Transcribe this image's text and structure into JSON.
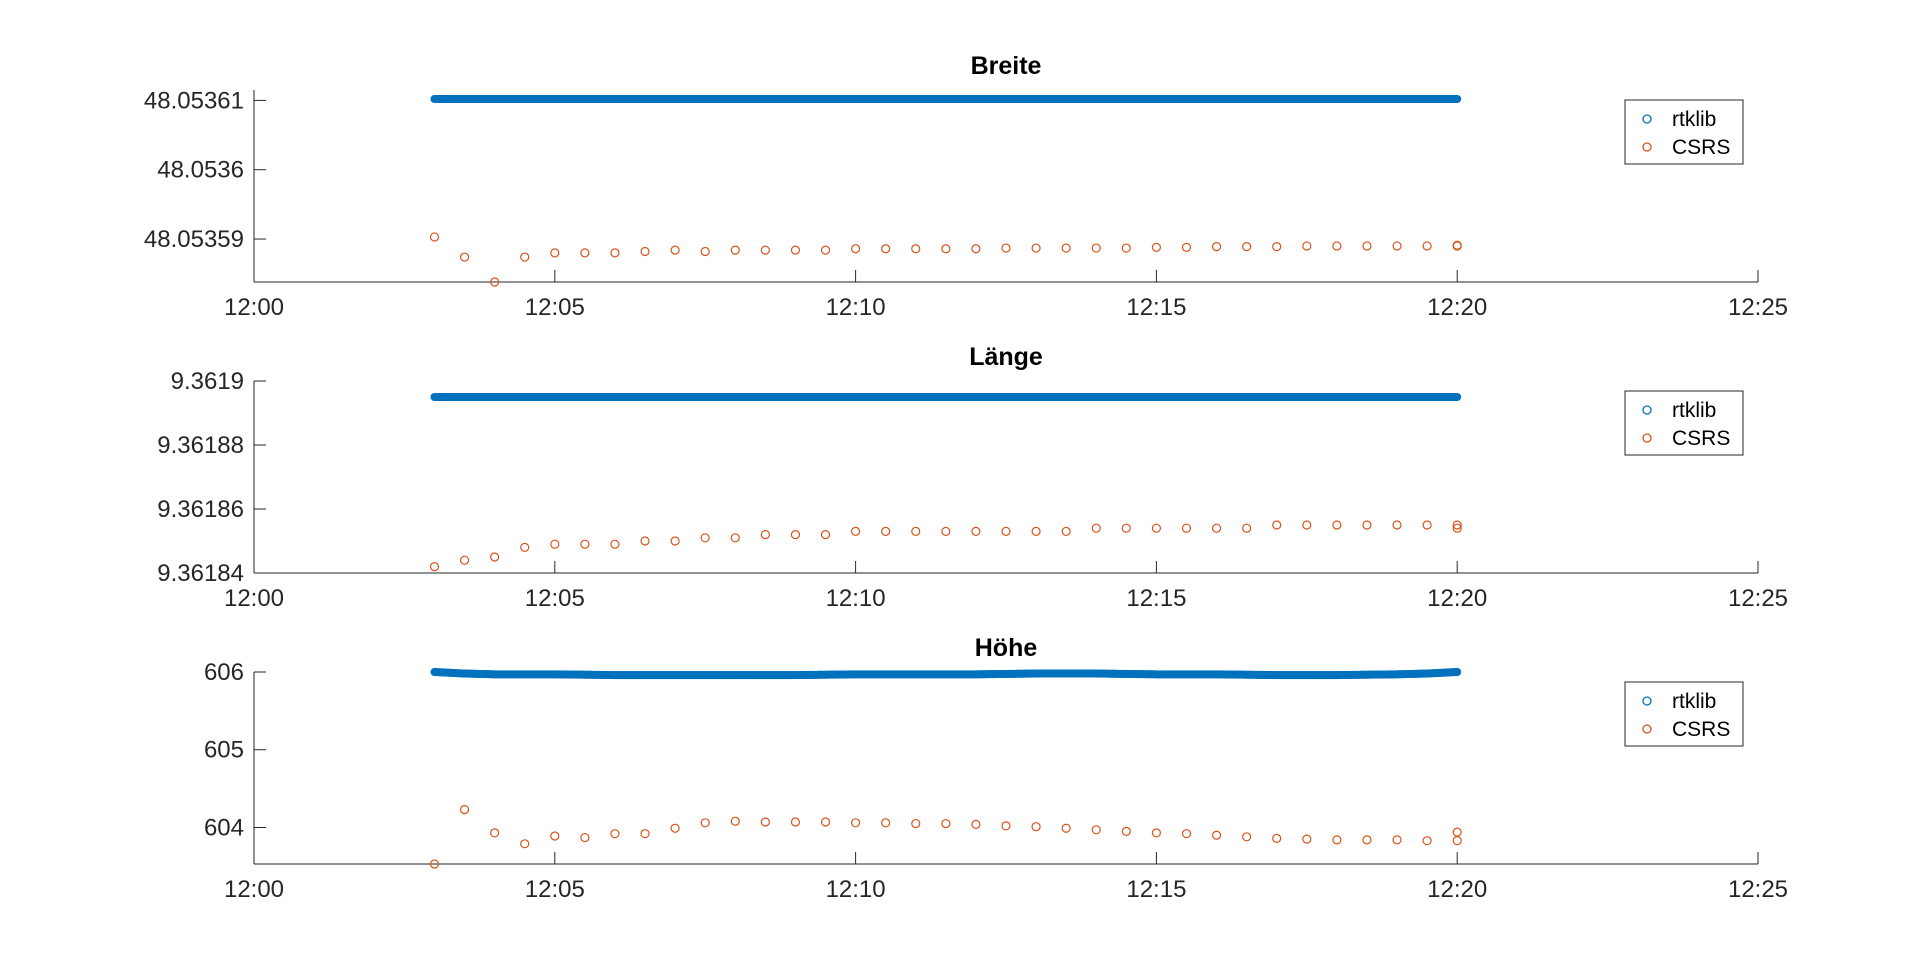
{
  "colors": {
    "rtklib": "#0072BD",
    "csrs": "#D95319"
  },
  "chart_data": [
    {
      "type": "scatter",
      "title": "Breite",
      "xlim": [
        "12:00",
        "12:25"
      ],
      "x_ticks": [
        "12:00",
        "12:05",
        "12:10",
        "12:15",
        "12:20",
        "12:25"
      ],
      "ylim": [
        48.0535838,
        48.0536115
      ],
      "y_ticks": [
        48.05359,
        48.0536,
        48.05361
      ],
      "y_tick_labels": [
        "48.05359",
        "48.0536",
        "48.05361"
      ],
      "legend": [
        "rtklib",
        "CSRS"
      ],
      "legend_position": "top-right",
      "series": [
        {
          "name": "rtklib",
          "x": [
            "12:03",
            "12:20"
          ],
          "values": [
            48.0536102,
            48.0536102
          ],
          "render": "dense"
        },
        {
          "name": "CSRS",
          "x": [
            "12:03",
            "12:03:30",
            "12:04",
            "12:04:30",
            "12:05",
            "12:05:30",
            "12:06",
            "12:06:30",
            "12:07",
            "12:07:30",
            "12:08",
            "12:08:30",
            "12:09",
            "12:09:30",
            "12:10",
            "12:10:30",
            "12:11",
            "12:11:30",
            "12:12",
            "12:12:30",
            "12:13",
            "12:13:30",
            "12:14",
            "12:14:30",
            "12:15",
            "12:15:30",
            "12:16",
            "12:16:30",
            "12:17",
            "12:17:30",
            "12:18",
            "12:18:30",
            "12:19",
            "12:19:30",
            "12:20",
            "12:20"
          ],
          "values": [
            48.0535903,
            48.0535874,
            48.0535838,
            48.0535874,
            48.053588,
            48.053588,
            48.053588,
            48.0535882,
            48.0535884,
            48.0535882,
            48.0535884,
            48.0535884,
            48.0535884,
            48.0535884,
            48.0535886,
            48.0535886,
            48.0535886,
            48.0535886,
            48.0535886,
            48.0535887,
            48.0535887,
            48.0535887,
            48.0535887,
            48.0535887,
            48.0535888,
            48.0535888,
            48.0535889,
            48.0535889,
            48.0535889,
            48.053589,
            48.053589,
            48.053589,
            48.053589,
            48.053589,
            48.053589,
            48.0535891
          ]
        }
      ]
    },
    {
      "type": "scatter",
      "title": "Länge",
      "xlim": [
        "12:00",
        "12:25"
      ],
      "x_ticks": [
        "12:00",
        "12:05",
        "12:10",
        "12:15",
        "12:20",
        "12:25"
      ],
      "ylim": [
        9.36184,
        9.3619
      ],
      "y_ticks": [
        9.36184,
        9.36186,
        9.36188,
        9.3619
      ],
      "y_tick_labels": [
        "9.36184",
        "9.36186",
        "9.36188",
        "9.3619"
      ],
      "legend": [
        "rtklib",
        "CSRS"
      ],
      "legend_position": "top-right",
      "series": [
        {
          "name": "rtklib",
          "x": [
            "12:03",
            "12:20"
          ],
          "values": [
            9.361895,
            9.361895
          ],
          "render": "dense"
        },
        {
          "name": "CSRS",
          "x": [
            "12:03",
            "12:03:30",
            "12:04",
            "12:04:30",
            "12:05",
            "12:05:30",
            "12:06",
            "12:06:30",
            "12:07",
            "12:07:30",
            "12:08",
            "12:08:30",
            "12:09",
            "12:09:30",
            "12:10",
            "12:10:30",
            "12:11",
            "12:11:30",
            "12:12",
            "12:12:30",
            "12:13",
            "12:13:30",
            "12:14",
            "12:14:30",
            "12:15",
            "12:15:30",
            "12:16",
            "12:16:30",
            "12:17",
            "12:17:30",
            "12:18",
            "12:18:30",
            "12:19",
            "12:19:30",
            "12:20",
            "12:20"
          ],
          "values": [
            9.361842,
            9.361844,
            9.361845,
            9.361848,
            9.361849,
            9.361849,
            9.361849,
            9.36185,
            9.36185,
            9.361851,
            9.361851,
            9.361852,
            9.361852,
            9.361852,
            9.361853,
            9.361853,
            9.361853,
            9.361853,
            9.361853,
            9.361853,
            9.361853,
            9.361853,
            9.361854,
            9.361854,
            9.361854,
            9.361854,
            9.361854,
            9.361854,
            9.361855,
            9.361855,
            9.361855,
            9.361855,
            9.361855,
            9.361855,
            9.361854,
            9.361855
          ]
        }
      ]
    },
    {
      "type": "scatter",
      "title": "Höhe",
      "xlim": [
        "12:00",
        "12:25"
      ],
      "x_ticks": [
        "12:00",
        "12:05",
        "12:10",
        "12:15",
        "12:20",
        "12:25"
      ],
      "ylim": [
        603.53,
        606
      ],
      "y_ticks": [
        604,
        605,
        606
      ],
      "y_tick_labels": [
        "604",
        "605",
        "606"
      ],
      "legend": [
        "rtklib",
        "CSRS"
      ],
      "legend_position": "top-right",
      "series": [
        {
          "name": "rtklib",
          "x": [
            "12:03",
            "12:03:30",
            "12:04",
            "12:05",
            "12:06",
            "12:07",
            "12:08",
            "12:09",
            "12:10",
            "12:11",
            "12:12",
            "12:13",
            "12:14",
            "12:15",
            "12:16",
            "12:17",
            "12:18",
            "12:19",
            "12:19:30",
            "12:20"
          ],
          "values": [
            606.0,
            605.98,
            605.97,
            605.97,
            605.96,
            605.96,
            605.96,
            605.96,
            605.97,
            605.97,
            605.97,
            605.98,
            605.98,
            605.97,
            605.97,
            605.96,
            605.96,
            605.97,
            605.98,
            606.0
          ],
          "render": "dense"
        },
        {
          "name": "CSRS",
          "x": [
            "12:03",
            "12:03:30",
            "12:04",
            "12:04:30",
            "12:05",
            "12:05:30",
            "12:06",
            "12:06:30",
            "12:07",
            "12:07:30",
            "12:08",
            "12:08:30",
            "12:09",
            "12:09:30",
            "12:10",
            "12:10:30",
            "12:11",
            "12:11:30",
            "12:12",
            "12:12:30",
            "12:13",
            "12:13:30",
            "12:14",
            "12:14:30",
            "12:15",
            "12:15:30",
            "12:16",
            "12:16:30",
            "12:17",
            "12:17:30",
            "12:18",
            "12:18:30",
            "12:19",
            "12:19:30",
            "12:20",
            "12:20"
          ],
          "values": [
            603.53,
            604.23,
            603.93,
            603.79,
            603.89,
            603.87,
            603.92,
            603.92,
            603.99,
            604.06,
            604.08,
            604.07,
            604.07,
            604.07,
            604.06,
            604.06,
            604.05,
            604.05,
            604.04,
            604.02,
            604.01,
            603.99,
            603.97,
            603.95,
            603.93,
            603.92,
            603.9,
            603.88,
            603.86,
            603.85,
            603.84,
            603.84,
            603.84,
            603.83,
            603.94,
            603.83
          ]
        }
      ]
    }
  ]
}
